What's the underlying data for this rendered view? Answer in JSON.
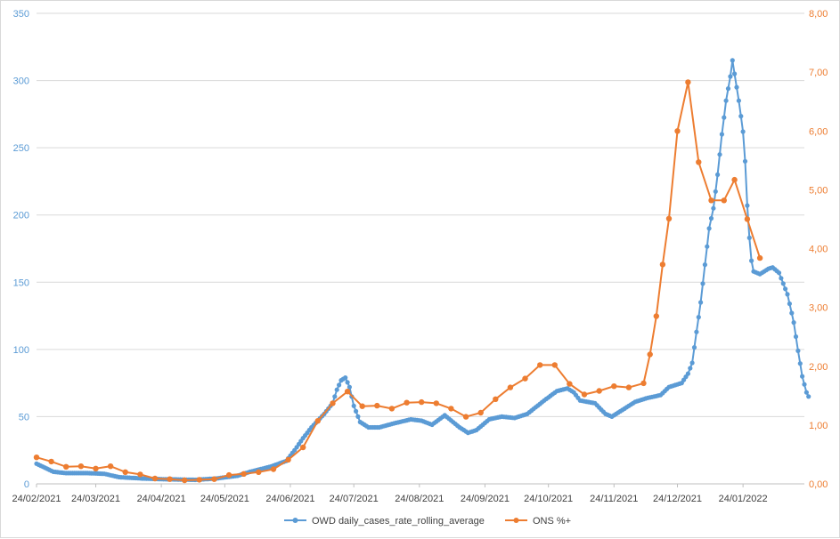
{
  "chart_data": {
    "type": "line",
    "title": "",
    "xlabel": "",
    "ylabel": "",
    "y2label": "",
    "x_range": [
      "2021-02-24",
      "2022-02-22"
    ],
    "ylim": [
      0,
      350
    ],
    "y2lim": [
      0,
      8
    ],
    "y_ticks": [
      "0",
      "50",
      "100",
      "150",
      "200",
      "250",
      "300",
      "350"
    ],
    "y2_ticks": [
      "0,00",
      "1,00",
      "2,00",
      "3,00",
      "4,00",
      "5,00",
      "6,00",
      "7,00",
      "8,00"
    ],
    "x_ticks": [
      "24/02/2021",
      "24/03/2021",
      "24/04/2021",
      "24/05/2021",
      "24/06/2021",
      "24/07/2021",
      "24/08/2021",
      "24/09/2021",
      "24/10/2021",
      "24/11/2021",
      "24/12/2021",
      "24/01/2022"
    ],
    "gridlines": true,
    "legend_position": "bottom",
    "colors": {
      "owd": "#5b9bd5",
      "ons": "#ed7d31",
      "grid": "#d9d9d9"
    },
    "series": [
      {
        "name": "OWD daily_cases_rate_rolling_average",
        "axis": "left",
        "color": "#5b9bd5",
        "marker": "circle",
        "knots": [
          [
            "2021-02-24",
            15
          ],
          [
            "2021-02-28",
            12
          ],
          [
            "2021-03-04",
            9
          ],
          [
            "2021-03-10",
            8
          ],
          [
            "2021-03-20",
            8
          ],
          [
            "2021-03-28",
            7.5
          ],
          [
            "2021-04-04",
            5
          ],
          [
            "2021-04-15",
            4
          ],
          [
            "2021-04-24",
            3.5
          ],
          [
            "2021-05-10",
            3
          ],
          [
            "2021-05-20",
            4
          ],
          [
            "2021-05-30",
            6
          ],
          [
            "2021-06-05",
            9
          ],
          [
            "2021-06-15",
            13
          ],
          [
            "2021-06-22",
            17
          ],
          [
            "2021-06-26",
            25
          ],
          [
            "2021-06-30",
            34
          ],
          [
            "2021-07-04",
            42
          ],
          [
            "2021-07-10",
            52
          ],
          [
            "2021-07-14",
            60
          ],
          [
            "2021-07-16",
            70
          ],
          [
            "2021-07-18",
            77
          ],
          [
            "2021-07-20",
            79
          ],
          [
            "2021-07-22",
            72
          ],
          [
            "2021-07-24",
            58
          ],
          [
            "2021-07-27",
            46
          ],
          [
            "2021-07-31",
            42
          ],
          [
            "2021-08-05",
            42
          ],
          [
            "2021-08-12",
            45
          ],
          [
            "2021-08-20",
            48
          ],
          [
            "2021-08-25",
            47
          ],
          [
            "2021-08-30",
            44
          ],
          [
            "2021-09-05",
            51
          ],
          [
            "2021-09-12",
            42
          ],
          [
            "2021-09-16",
            38
          ],
          [
            "2021-09-20",
            40
          ],
          [
            "2021-09-26",
            48
          ],
          [
            "2021-10-02",
            50
          ],
          [
            "2021-10-08",
            49
          ],
          [
            "2021-10-14",
            52
          ],
          [
            "2021-10-22",
            62
          ],
          [
            "2021-10-28",
            69
          ],
          [
            "2021-11-02",
            71
          ],
          [
            "2021-11-05",
            68
          ],
          [
            "2021-11-08",
            62
          ],
          [
            "2021-11-15",
            60
          ],
          [
            "2021-11-20",
            52
          ],
          [
            "2021-11-23",
            50
          ],
          [
            "2021-11-28",
            55
          ],
          [
            "2021-12-04",
            61
          ],
          [
            "2021-12-10",
            64
          ],
          [
            "2021-12-16",
            66
          ],
          [
            "2021-12-20",
            72
          ],
          [
            "2021-12-26",
            75
          ],
          [
            "2021-12-29",
            82
          ],
          [
            "2021-12-31",
            90
          ],
          [
            "2022-01-02",
            113
          ],
          [
            "2022-01-04",
            135
          ],
          [
            "2022-01-06",
            163
          ],
          [
            "2022-01-08",
            190
          ],
          [
            "2022-01-10",
            205
          ],
          [
            "2022-01-12",
            230
          ],
          [
            "2022-01-14",
            260
          ],
          [
            "2022-01-16",
            285
          ],
          [
            "2022-01-18",
            303
          ],
          [
            "2022-01-19",
            315
          ],
          [
            "2022-01-20",
            305
          ],
          [
            "2022-01-22",
            285
          ],
          [
            "2022-01-24",
            262
          ],
          [
            "2022-01-25",
            240
          ],
          [
            "2022-01-26",
            207
          ],
          [
            "2022-01-27",
            183
          ],
          [
            "2022-01-28",
            166
          ],
          [
            "2022-01-29",
            158
          ],
          [
            "2022-02-01",
            156
          ],
          [
            "2022-02-05",
            160
          ],
          [
            "2022-02-07",
            161
          ],
          [
            "2022-02-10",
            157
          ],
          [
            "2022-02-14",
            141
          ],
          [
            "2022-02-17",
            120
          ],
          [
            "2022-02-19",
            99
          ],
          [
            "2022-02-21",
            80
          ],
          [
            "2022-02-23",
            68
          ],
          [
            "2022-02-24",
            65
          ]
        ]
      },
      {
        "name": "ONS %+",
        "axis": "right",
        "color": "#ed7d31",
        "marker": "circle",
        "points": [
          [
            "2021-02-24",
            0.45
          ],
          [
            "2021-03-03",
            0.38
          ],
          [
            "2021-03-10",
            0.29
          ],
          [
            "2021-03-17",
            0.3
          ],
          [
            "2021-03-24",
            0.26
          ],
          [
            "2021-03-31",
            0.3
          ],
          [
            "2021-04-07",
            0.2
          ],
          [
            "2021-04-14",
            0.16
          ],
          [
            "2021-04-21",
            0.09
          ],
          [
            "2021-04-28",
            0.08
          ],
          [
            "2021-05-05",
            0.06
          ],
          [
            "2021-05-12",
            0.07
          ],
          [
            "2021-05-19",
            0.08
          ],
          [
            "2021-05-26",
            0.15
          ],
          [
            "2021-06-02",
            0.17
          ],
          [
            "2021-06-09",
            0.2
          ],
          [
            "2021-06-16",
            0.25
          ],
          [
            "2021-06-23",
            0.41
          ],
          [
            "2021-06-30",
            0.62
          ],
          [
            "2021-07-07",
            1.07
          ],
          [
            "2021-07-14",
            1.37
          ],
          [
            "2021-07-21",
            1.57
          ],
          [
            "2021-07-28",
            1.32
          ],
          [
            "2021-08-04",
            1.33
          ],
          [
            "2021-08-11",
            1.28
          ],
          [
            "2021-08-18",
            1.38
          ],
          [
            "2021-08-25",
            1.39
          ],
          [
            "2021-09-01",
            1.37
          ],
          [
            "2021-09-08",
            1.28
          ],
          [
            "2021-09-15",
            1.14
          ],
          [
            "2021-09-22",
            1.21
          ],
          [
            "2021-09-29",
            1.44
          ],
          [
            "2021-10-06",
            1.64
          ],
          [
            "2021-10-13",
            1.79
          ],
          [
            "2021-10-20",
            2.02
          ],
          [
            "2021-10-27",
            2.02
          ],
          [
            "2021-11-03",
            1.7
          ],
          [
            "2021-11-10",
            1.52
          ],
          [
            "2021-11-17",
            1.58
          ],
          [
            "2021-11-24",
            1.66
          ],
          [
            "2021-12-01",
            1.64
          ],
          [
            "2021-12-08",
            1.71
          ],
          [
            "2021-12-11",
            2.2
          ],
          [
            "2021-12-14",
            2.85
          ],
          [
            "2021-12-17",
            3.73
          ],
          [
            "2021-12-20",
            4.51
          ],
          [
            "2021-12-24",
            6.0
          ],
          [
            "2021-12-29",
            6.83
          ],
          [
            "2022-01-03",
            5.47
          ],
          [
            "2022-01-09",
            4.82
          ],
          [
            "2022-01-15",
            4.82
          ],
          [
            "2022-01-20",
            5.17
          ],
          [
            "2022-01-26",
            4.5
          ],
          [
            "2022-02-01",
            3.84
          ]
        ]
      }
    ]
  }
}
